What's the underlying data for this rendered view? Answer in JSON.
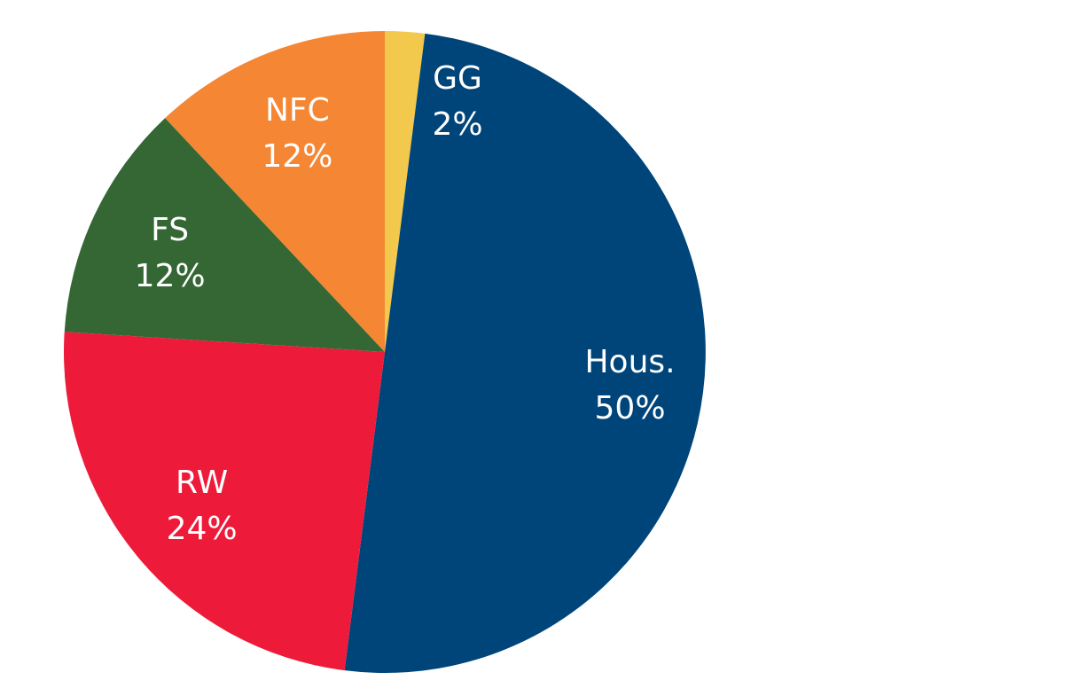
{
  "chart_data": {
    "type": "pie",
    "slices": [
      {
        "name": "GG",
        "value": 2,
        "label": "2%",
        "color": "#F2C94C"
      },
      {
        "name": "Hous.",
        "value": 50,
        "label": "50%",
        "color": "#00457A"
      },
      {
        "name": "RW",
        "value": 24,
        "label": "24%",
        "color": "#EE1A3A"
      },
      {
        "name": "FS",
        "value": 12,
        "label": "12%",
        "color": "#346733"
      },
      {
        "name": "NFC",
        "value": 12,
        "label": "12%",
        "color": "#F48634"
      }
    ],
    "start": "top",
    "direction": "clockwise"
  }
}
